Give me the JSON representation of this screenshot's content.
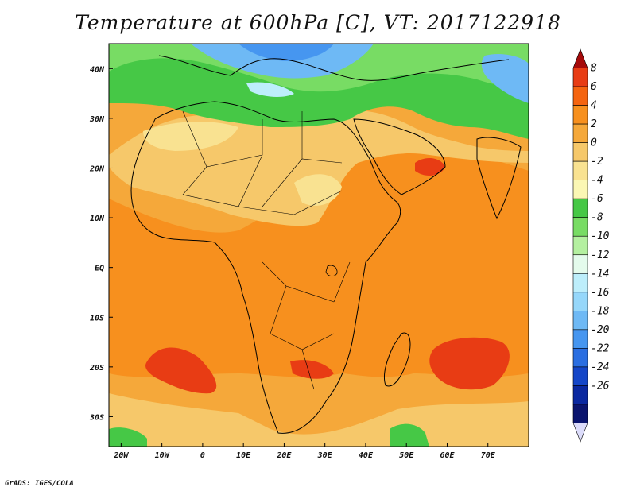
{
  "title": "Temperature at 600hPa [C], VT: 2017122918",
  "credit": "GrADS: IGES/COLA",
  "map": {
    "variable": "Temperature",
    "level": "600hPa",
    "units": "C",
    "valid_time": "2017122918",
    "lon_range": [
      -23,
      80
    ],
    "lat_range": [
      -36,
      45
    ],
    "lon_ticks": [
      {
        "value": -20,
        "label": "20W"
      },
      {
        "value": -10,
        "label": "10W"
      },
      {
        "value": 0,
        "label": "0"
      },
      {
        "value": 10,
        "label": "10E"
      },
      {
        "value": 20,
        "label": "20E"
      },
      {
        "value": 30,
        "label": "30E"
      },
      {
        "value": 40,
        "label": "40E"
      },
      {
        "value": 50,
        "label": "50E"
      },
      {
        "value": 60,
        "label": "60E"
      },
      {
        "value": 70,
        "label": "70E"
      }
    ],
    "lat_ticks": [
      {
        "value": 40,
        "label": "40N"
      },
      {
        "value": 30,
        "label": "30N"
      },
      {
        "value": 20,
        "label": "20N"
      },
      {
        "value": 10,
        "label": "10N"
      },
      {
        "value": 0,
        "label": "EQ"
      },
      {
        "value": -10,
        "label": "10S"
      },
      {
        "value": -20,
        "label": "20S"
      },
      {
        "value": -30,
        "label": "30S"
      }
    ]
  },
  "colorbar": {
    "levels": [
      "8",
      "6",
      "4",
      "2",
      "0",
      "-2",
      "-4",
      "-6",
      "-8",
      "-10",
      "-12",
      "-14",
      "-16",
      "-18",
      "-20",
      "-22",
      "-24",
      "-26"
    ],
    "colors": [
      "#a50a0a",
      "#e83c14",
      "#f5640f",
      "#f7901e",
      "#f5a83a",
      "#f6c86a",
      "#f9e291",
      "#fbf7b4",
      "#46c846",
      "#78dc64",
      "#b4f0a0",
      "#e4fbec",
      "#bdeefb",
      "#96d7fa",
      "#6eb9f5",
      "#4696f0",
      "#2a6ee1",
      "#1446c8",
      "#0a28a0",
      "#0a146e",
      "#dcdcfa"
    ]
  },
  "colors": {
    "ocean_warm": "#f5a83a",
    "land_orange": "#f7901e",
    "land_yellow": "#f6c86a",
    "hot_red": "#e83c14",
    "green": "#46c846",
    "light_green": "#78dc64",
    "blue": "#6eb9f5"
  }
}
